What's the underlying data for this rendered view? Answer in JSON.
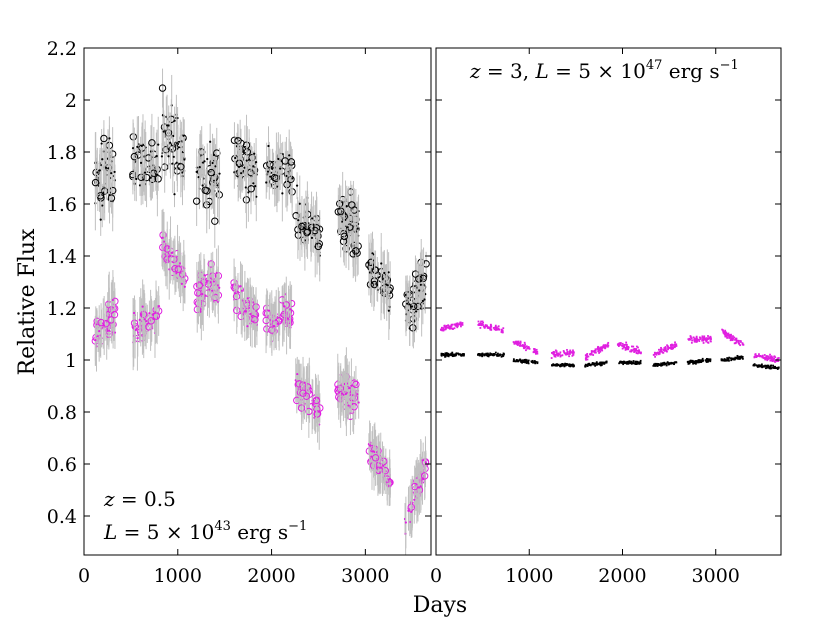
{
  "chart_data": [
    {
      "type": "scatter",
      "panel": "left",
      "ylabel": "Relative Flux",
      "annotation_lines": [
        "z = 0.5",
        "L = 5 × 10^43 erg s^-1"
      ],
      "xlim": [
        0,
        3700
      ],
      "ylim": [
        0.25,
        2.2
      ],
      "xticks": [
        0,
        1000,
        2000,
        3000
      ],
      "xtick_labels": [
        "0",
        "1000",
        "2000",
        "3000"
      ],
      "yticks": [
        0.4,
        0.6,
        0.8,
        1.0,
        1.2,
        1.4,
        1.6,
        1.8,
        2.0,
        2.2
      ],
      "ytick_labels": [
        "0.4",
        "0.6",
        "0.8",
        "1",
        "1.2",
        "1.4",
        "1.6",
        "1.8",
        "2",
        "2.2"
      ],
      "series": [
        {
          "color": "#000000",
          "marker": "open-circle",
          "errorbar_color": "#c0c0c0",
          "segments": [
            {
              "x": [
                120,
                330
              ],
              "y": [
                1.7,
                1.72
              ],
              "scatter": 0.14
            },
            {
              "x": [
                520,
                800
              ],
              "y": [
                1.76,
                1.74
              ],
              "scatter": 0.12
            },
            {
              "x": [
                830,
                1080
              ],
              "y": [
                1.9,
                1.8
              ],
              "scatter": 0.14
            },
            {
              "x": [
                1200,
                1450
              ],
              "y": [
                1.74,
                1.7
              ],
              "scatter": 0.12
            },
            {
              "x": [
                1600,
                1850
              ],
              "y": [
                1.76,
                1.7
              ],
              "scatter": 0.11
            },
            {
              "x": [
                1940,
                2220
              ],
              "y": [
                1.74,
                1.72
              ],
              "scatter": 0.08
            },
            {
              "x": [
                2250,
                2520
              ],
              "y": [
                1.55,
                1.45
              ],
              "scatter": 0.1
            },
            {
              "x": [
                2700,
                2930
              ],
              "y": [
                1.56,
                1.48
              ],
              "scatter": 0.1
            },
            {
              "x": [
                3030,
                3270
              ],
              "y": [
                1.36,
                1.26
              ],
              "scatter": 0.07
            },
            {
              "x": [
                3420,
                3650
              ],
              "y": [
                1.18,
                1.3
              ],
              "scatter": 0.09
            }
          ]
        },
        {
          "color": "#e020e0",
          "marker": "open-circle",
          "errorbar_color": "#c0c0c0",
          "segments": [
            {
              "x": [
                120,
                330
              ],
              "y": [
                1.1,
                1.18
              ],
              "scatter": 0.06
            },
            {
              "x": [
                520,
                800
              ],
              "y": [
                1.12,
                1.18
              ],
              "scatter": 0.07
            },
            {
              "x": [
                830,
                1080
              ],
              "y": [
                1.44,
                1.32
              ],
              "scatter": 0.06
            },
            {
              "x": [
                1200,
                1450
              ],
              "y": [
                1.24,
                1.3
              ],
              "scatter": 0.07
            },
            {
              "x": [
                1600,
                1850
              ],
              "y": [
                1.26,
                1.16
              ],
              "scatter": 0.06
            },
            {
              "x": [
                1940,
                2220
              ],
              "y": [
                1.14,
                1.18
              ],
              "scatter": 0.06
            },
            {
              "x": [
                2250,
                2520
              ],
              "y": [
                0.92,
                0.8
              ],
              "scatter": 0.06
            },
            {
              "x": [
                2700,
                2930
              ],
              "y": [
                0.9,
                0.86
              ],
              "scatter": 0.06
            },
            {
              "x": [
                3030,
                3270
              ],
              "y": [
                0.66,
                0.53
              ],
              "scatter": 0.04
            },
            {
              "x": [
                3420,
                3650
              ],
              "y": [
                0.36,
                0.6
              ],
              "scatter": 0.05
            }
          ]
        }
      ]
    },
    {
      "type": "scatter",
      "panel": "right",
      "xlabel": "Days",
      "annotation_lines": [
        "z = 3,  L = 5 × 10^47 erg s^-1"
      ],
      "xlim": [
        0,
        3700
      ],
      "ylim": [
        0.25,
        2.2
      ],
      "xticks": [
        0,
        1000,
        2000,
        3000
      ],
      "xtick_labels": [
        "0",
        "1000",
        "2000",
        "3000"
      ],
      "series": [
        {
          "color": "#000000",
          "marker": "dot",
          "segments": [
            {
              "x": [
                50,
                300
              ],
              "y": [
                1.02,
                1.02
              ],
              "scatter": 0.006
            },
            {
              "x": [
                450,
                730
              ],
              "y": [
                1.02,
                1.02
              ],
              "scatter": 0.006
            },
            {
              "x": [
                830,
                1090
              ],
              "y": [
                1.0,
                0.99
              ],
              "scatter": 0.006
            },
            {
              "x": [
                1240,
                1480
              ],
              "y": [
                0.98,
                0.98
              ],
              "scatter": 0.006
            },
            {
              "x": [
                1600,
                1850
              ],
              "y": [
                0.98,
                0.99
              ],
              "scatter": 0.006
            },
            {
              "x": [
                1950,
                2200
              ],
              "y": [
                0.99,
                0.99
              ],
              "scatter": 0.006
            },
            {
              "x": [
                2330,
                2580
              ],
              "y": [
                0.98,
                0.99
              ],
              "scatter": 0.006
            },
            {
              "x": [
                2700,
                2950
              ],
              "y": [
                0.99,
                1.0
              ],
              "scatter": 0.006
            },
            {
              "x": [
                3060,
                3300
              ],
              "y": [
                1.0,
                1.01
              ],
              "scatter": 0.006
            },
            {
              "x": [
                3400,
                3680
              ],
              "y": [
                0.98,
                0.97
              ],
              "scatter": 0.006
            }
          ]
        },
        {
          "color": "#e020e0",
          "marker": "dot",
          "segments": [
            {
              "x": [
                50,
                300
              ],
              "y": [
                1.12,
                1.14
              ],
              "scatter": 0.012
            },
            {
              "x": [
                450,
                730
              ],
              "y": [
                1.14,
                1.11
              ],
              "scatter": 0.012
            },
            {
              "x": [
                830,
                1090
              ],
              "y": [
                1.07,
                1.03
              ],
              "scatter": 0.012
            },
            {
              "x": [
                1240,
                1480
              ],
              "y": [
                1.02,
                1.03
              ],
              "scatter": 0.012
            },
            {
              "x": [
                1600,
                1850
              ],
              "y": [
                1.01,
                1.06
              ],
              "scatter": 0.012
            },
            {
              "x": [
                1950,
                2200
              ],
              "y": [
                1.06,
                1.03
              ],
              "scatter": 0.012
            },
            {
              "x": [
                2330,
                2580
              ],
              "y": [
                1.02,
                1.06
              ],
              "scatter": 0.012
            },
            {
              "x": [
                2700,
                2950
              ],
              "y": [
                1.08,
                1.08
              ],
              "scatter": 0.012
            },
            {
              "x": [
                3060,
                3300
              ],
              "y": [
                1.11,
                1.06
              ],
              "scatter": 0.012
            },
            {
              "x": [
                3400,
                3680
              ],
              "y": [
                1.02,
                1.0
              ],
              "scatter": 0.012
            }
          ]
        }
      ]
    }
  ]
}
